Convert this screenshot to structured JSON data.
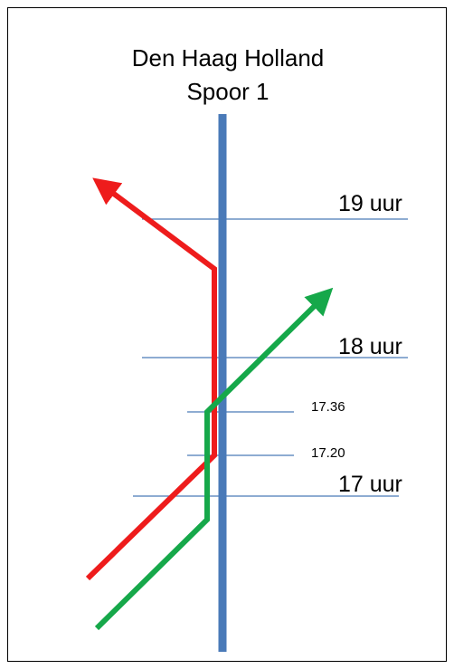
{
  "title": {
    "line1": "Den Haag Holland",
    "line2": "Spoor 1"
  },
  "time_labels": {
    "t19": "19 uur",
    "t18": "18 uur",
    "t1736": "17.36",
    "t1720": "17.20",
    "t17": "17 uur"
  },
  "colors": {
    "track": "#4a7ab8",
    "time_line": "#4a7ab8",
    "red_route": "#ee1c1c",
    "green_route": "#16a84a",
    "text": "#000000",
    "border": "#000000"
  }
}
